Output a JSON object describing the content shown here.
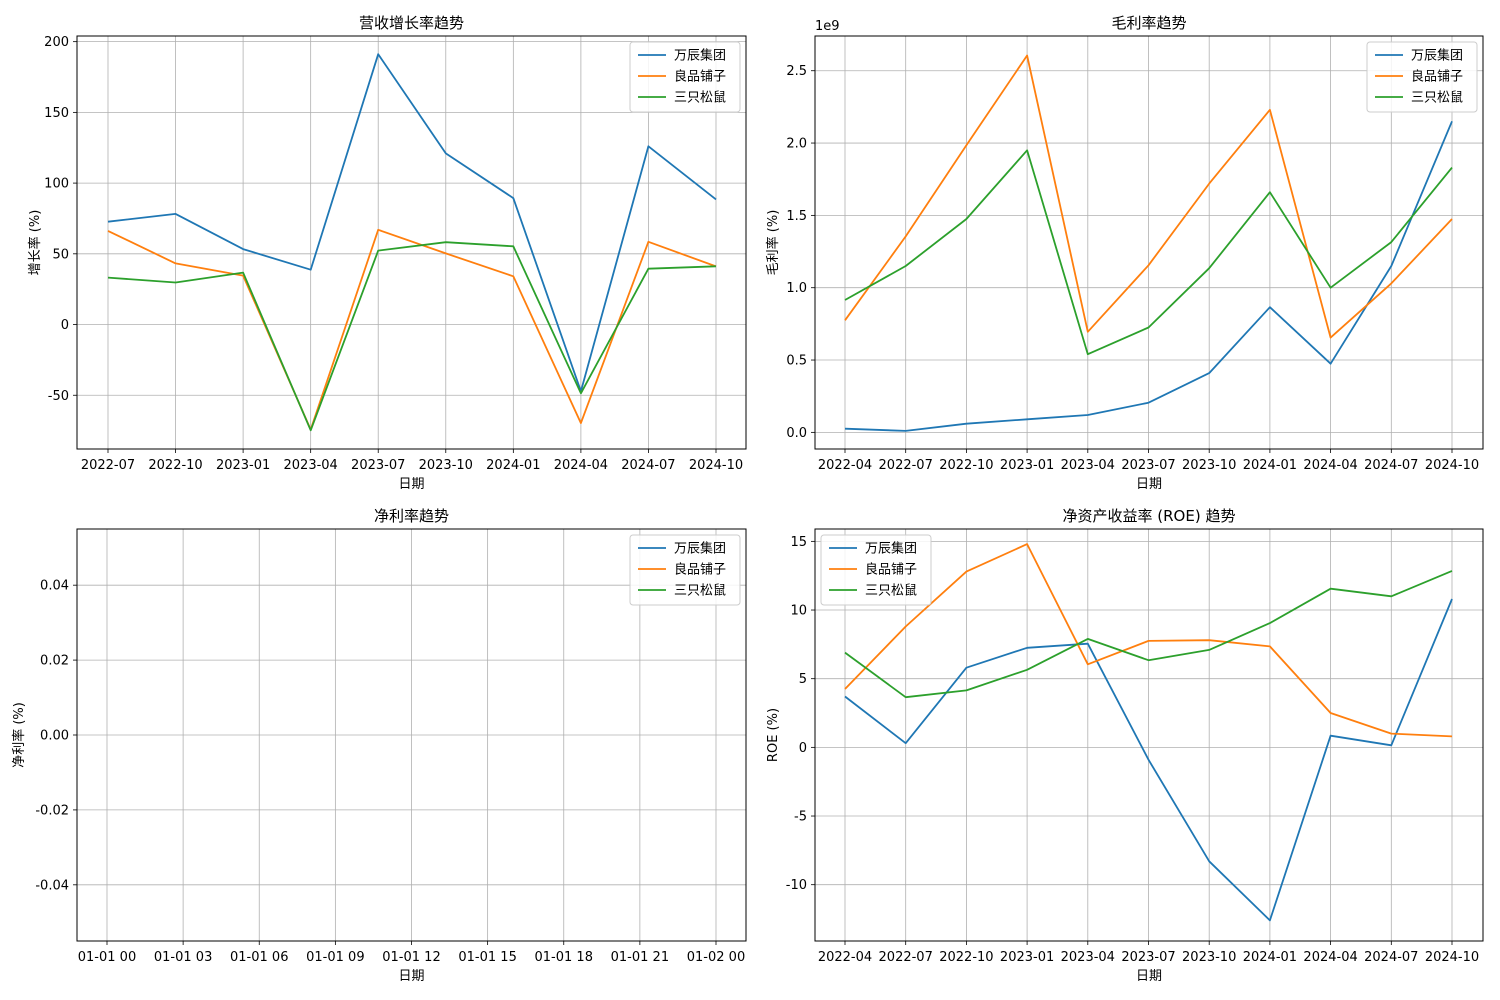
{
  "chart_data": [
    {
      "type": "line",
      "title": "营收增长率趋势",
      "xlabel": "日期",
      "ylabel": "增长率 (%)",
      "x": [
        "2022-07",
        "2022-10",
        "2023-01",
        "2023-04",
        "2023-07",
        "2023-10",
        "2024-01",
        "2024-04",
        "2024-07",
        "2024-10"
      ],
      "xticks": [
        "2022-07",
        "2022-10",
        "2023-01",
        "2023-04",
        "2023-07",
        "2023-10",
        "2024-01",
        "2024-04",
        "2024-07",
        "2024-10"
      ],
      "yticks": [
        -50,
        0,
        50,
        100,
        150,
        200
      ],
      "ytick_labels": [
        "-50",
        "0",
        "50",
        "100",
        "150",
        "200"
      ],
      "ylim": [
        -88,
        204
      ],
      "grid": true,
      "legend": "upper right",
      "series": [
        {
          "name": "万辰集团",
          "color": "#1f77b4",
          "values": [
            72.7,
            78.2,
            53.3,
            38.8,
            191.1,
            121.0,
            89.4,
            -47.2,
            126.0,
            88.5
          ]
        },
        {
          "name": "良品铺子",
          "color": "#ff7f0e",
          "values": [
            66.2,
            43.2,
            34.6,
            -74.3,
            67.0,
            50.3,
            34.1,
            -69.7,
            58.5,
            41.1
          ]
        },
        {
          "name": "三只松鼠",
          "color": "#2ca02c",
          "values": [
            33.2,
            29.7,
            36.7,
            -74.8,
            52.3,
            58.2,
            55.3,
            -48.6,
            39.5,
            41.2
          ]
        }
      ]
    },
    {
      "type": "line",
      "title": "毛利率趋势",
      "xlabel": "日期",
      "ylabel": "毛利率 (%)",
      "y_offset_label": "1e9",
      "x": [
        "2022-04",
        "2022-07",
        "2022-10",
        "2023-01",
        "2023-04",
        "2023-07",
        "2023-10",
        "2024-01",
        "2024-04",
        "2024-07",
        "2024-10"
      ],
      "xticks": [
        "2022-04",
        "2022-07",
        "2022-10",
        "2023-01",
        "2023-04",
        "2023-07",
        "2023-10",
        "2024-01",
        "2024-04",
        "2024-07",
        "2024-10"
      ],
      "yticks": [
        0.0,
        0.5,
        1.0,
        1.5,
        2.0,
        2.5
      ],
      "ytick_labels": [
        "0.0",
        "0.5",
        "1.0",
        "1.5",
        "2.0",
        "2.5"
      ],
      "ylim": [
        -0.115,
        2.74
      ],
      "grid": true,
      "legend": "upper right",
      "series": [
        {
          "name": "万辰集团",
          "color": "#1f77b4",
          "values": [
            0.025,
            0.01,
            0.06,
            0.09,
            0.12,
            0.205,
            0.41,
            0.865,
            0.475,
            1.15,
            2.15
          ]
        },
        {
          "name": "良品铺子",
          "color": "#ff7f0e",
          "values": [
            0.775,
            1.355,
            1.985,
            2.605,
            0.695,
            1.155,
            1.72,
            2.23,
            0.655,
            1.03,
            1.475
          ]
        },
        {
          "name": "三只松鼠",
          "color": "#2ca02c",
          "values": [
            0.915,
            1.15,
            1.475,
            1.95,
            0.54,
            0.725,
            1.135,
            1.66,
            1.0,
            1.315,
            1.83
          ]
        }
      ]
    },
    {
      "type": "line",
      "title": "净利率趋势",
      "xlabel": "日期",
      "ylabel": "净利率 (%)",
      "x": [],
      "xticks": [
        "01-01 00",
        "01-01 03",
        "01-01 06",
        "01-01 09",
        "01-01 12",
        "01-01 15",
        "01-01 18",
        "01-01 21",
        "01-02 00"
      ],
      "yticks": [
        -0.04,
        -0.02,
        0.0,
        0.02,
        0.04
      ],
      "ytick_labels": [
        "-0.04",
        "-0.02",
        "0.00",
        "0.02",
        "0.04"
      ],
      "ylim": [
        -0.055,
        0.055
      ],
      "grid": true,
      "legend": "upper right",
      "series": [
        {
          "name": "万辰集团",
          "color": "#1f77b4",
          "values": []
        },
        {
          "name": "良品铺子",
          "color": "#ff7f0e",
          "values": []
        },
        {
          "name": "三只松鼠",
          "color": "#2ca02c",
          "values": []
        }
      ]
    },
    {
      "type": "line",
      "title": "净资产收益率 (ROE) 趋势",
      "xlabel": "日期",
      "ylabel": "ROE (%)",
      "x": [
        "2022-04",
        "2022-07",
        "2022-10",
        "2023-01",
        "2023-04",
        "2023-07",
        "2023-10",
        "2024-01",
        "2024-04",
        "2024-07",
        "2024-10"
      ],
      "xticks": [
        "2022-04",
        "2022-07",
        "2022-10",
        "2023-01",
        "2023-04",
        "2023-07",
        "2023-10",
        "2024-01",
        "2024-04",
        "2024-07",
        "2024-10"
      ],
      "yticks": [
        -10,
        -5,
        0,
        5,
        10,
        15
      ],
      "ytick_labels": [
        "-10",
        "-5",
        "0",
        "5",
        "10",
        "15"
      ],
      "ylim": [
        -14.1,
        15.9
      ],
      "grid": true,
      "legend": "upper left",
      "series": [
        {
          "name": "万辰集团",
          "color": "#1f77b4",
          "values": [
            3.7,
            0.3,
            5.8,
            7.25,
            7.55,
            -0.9,
            -8.3,
            -12.6,
            0.85,
            0.15,
            10.8
          ]
        },
        {
          "name": "良品铺子",
          "color": "#ff7f0e",
          "values": [
            4.25,
            8.8,
            12.8,
            14.8,
            6.05,
            7.75,
            7.8,
            7.35,
            2.5,
            1.0,
            0.8
          ]
        },
        {
          "name": "三只松鼠",
          "color": "#2ca02c",
          "values": [
            6.9,
            3.65,
            4.15,
            5.65,
            7.9,
            6.35,
            7.1,
            9.05,
            11.55,
            11.0,
            12.85
          ]
        }
      ]
    }
  ]
}
